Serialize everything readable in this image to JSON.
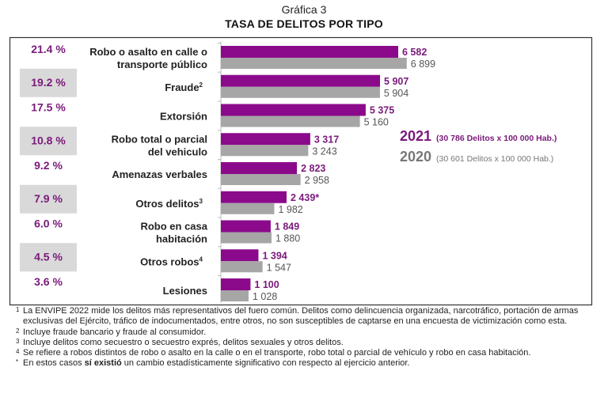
{
  "header": {
    "subtitle": "Gráfica 3",
    "title": "TASA DE DELITOS POR TIPO"
  },
  "chart_data": {
    "type": "bar",
    "orientation": "horizontal",
    "title": "TASA DE DELITOS POR TIPO",
    "categories": [
      {
        "lines": [
          "Robo o asalto en calle o",
          "transporte público"
        ],
        "sup": ""
      },
      {
        "lines": [
          "Fraude"
        ],
        "sup": "2"
      },
      {
        "lines": [
          "Extorsión"
        ],
        "sup": ""
      },
      {
        "lines": [
          "Robo total o parcial",
          "del vehiculo"
        ],
        "sup": ""
      },
      {
        "lines": [
          "Amenazas verbales"
        ],
        "sup": ""
      },
      {
        "lines": [
          "Otros delitos"
        ],
        "sup": "3"
      },
      {
        "lines": [
          "Robo en casa",
          "habitación"
        ],
        "sup": ""
      },
      {
        "lines": [
          "Otros robos"
        ],
        "sup": "4"
      },
      {
        "lines": [
          "Lesiones"
        ],
        "sup": ""
      }
    ],
    "shares": [
      "21.4 %",
      "19.2 %",
      "17.5 %",
      "10.8 %",
      "9.2 %",
      "7.9 %",
      "6.0 %",
      "4.5 %",
      "3.6 %"
    ],
    "series": [
      {
        "name": "2021",
        "note": "(30 786 Delitos x 100 000 Hab.)",
        "color": "#8B0A8B",
        "values": [
          6582,
          5907,
          5375,
          3317,
          2823,
          2439,
          1849,
          1394,
          1100
        ],
        "labels": [
          "6 582",
          "5 907",
          "5 375",
          "3 317",
          "2 823",
          "2 439*",
          "1 849",
          "1 394",
          "1 100"
        ]
      },
      {
        "name": "2020",
        "note": "(30 601  Delitos x 100 000 Hab.)",
        "color": "#A6A6A6",
        "values": [
          6899,
          5904,
          5160,
          3243,
          2958,
          1982,
          1880,
          1547,
          1028
        ],
        "labels": [
          "6 899",
          "5 904",
          "5 160",
          "3 243",
          "2 958",
          "1 982",
          "1 880",
          "1 547",
          "1 028"
        ]
      }
    ],
    "legend_position": "right",
    "grid": false
  },
  "footnotes": [
    {
      "mark": "1",
      "text": "La ENVIPE 2022 mide los delitos más representativos del fuero común. Delitos como delincuencia organizada, narcotráfico, portación de armas exclusivas del Ejército, tráfico de indocumentados, entre otros, no son susceptibles de captarse en una encuesta de victimización como esta."
    },
    {
      "mark": "2",
      "text": "Incluye fraude bancario y fraude al consumidor."
    },
    {
      "mark": "3",
      "text": "Incluye delitos como secuestro o secuestro exprés, delitos sexuales y otros delitos."
    },
    {
      "mark": "4",
      "text": "Se refiere a robos distintos de robo o asalto en la calle o en el transporte, robo total o parcial de vehículo y robo en casa habitación."
    }
  ],
  "significance_note": {
    "mark": "*",
    "pre": "En estos casos ",
    "bold": "sí existió",
    "post": " un cambio estadísticamente significativo con respecto al ejercicio anterior."
  }
}
